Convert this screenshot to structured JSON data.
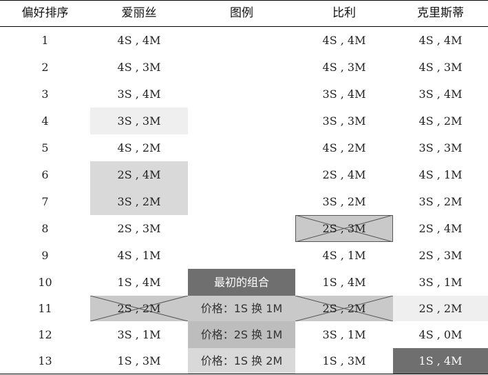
{
  "headers": {
    "rank": "偏好排序",
    "alice": "爱丽丝",
    "legend": "图例",
    "billy": "比利",
    "christy": "克里斯蒂"
  },
  "rows": [
    {
      "rank": "1",
      "alice": "4S , 4M",
      "legend": "",
      "billy": "4S , 4M",
      "christy": "4S , 4M"
    },
    {
      "rank": "2",
      "alice": "4S , 3M",
      "legend": "",
      "billy": "4S , 3M",
      "christy": "4S , 3M"
    },
    {
      "rank": "3",
      "alice": "3S , 4M",
      "legend": "",
      "billy": "3S , 4M",
      "christy": "3S , 4M"
    },
    {
      "rank": "4",
      "alice": "3S , 3M",
      "legend": "",
      "billy": "3S , 3M",
      "christy": "4S , 2M"
    },
    {
      "rank": "5",
      "alice": "4S , 2M",
      "legend": "",
      "billy": "4S , 2M",
      "christy": "3S , 3M"
    },
    {
      "rank": "6",
      "alice": "2S , 4M",
      "legend": "",
      "billy": "2S , 4M",
      "christy": "4S , 1M"
    },
    {
      "rank": "7",
      "alice": "3S , 2M",
      "legend": "",
      "billy": "3S , 2M",
      "christy": "3S , 2M"
    },
    {
      "rank": "8",
      "alice": "2S , 3M",
      "legend": "",
      "billy": "2S , 3M",
      "christy": "2S , 4M"
    },
    {
      "rank": "9",
      "alice": "4S , 1M",
      "legend": "",
      "billy": "4S , 1M",
      "christy": "2S , 3M"
    },
    {
      "rank": "10",
      "alice": "1S , 4M",
      "legend": "最初的组合",
      "billy": "1S , 4M",
      "christy": "3S , 1M"
    },
    {
      "rank": "11",
      "alice": "2S , 2M",
      "legend": "价格：1S 换 1M",
      "billy": "2S , 2M",
      "christy": "2S , 2M"
    },
    {
      "rank": "12",
      "alice": "3S , 1M",
      "legend": "价格：2S 换 1M",
      "billy": "3S , 1M",
      "christy": "4S , 0M"
    },
    {
      "rank": "13",
      "alice": "1S , 3M",
      "legend": "价格：1S 换 2M",
      "billy": "1S , 3M",
      "christy": "1S , 4M"
    }
  ],
  "colors": {
    "light_gray": "#efefef",
    "mid_gray": "#d9d9d9",
    "mid_dark_gray": "#c9c9c9",
    "dark_gray": "#6f6f6f"
  }
}
